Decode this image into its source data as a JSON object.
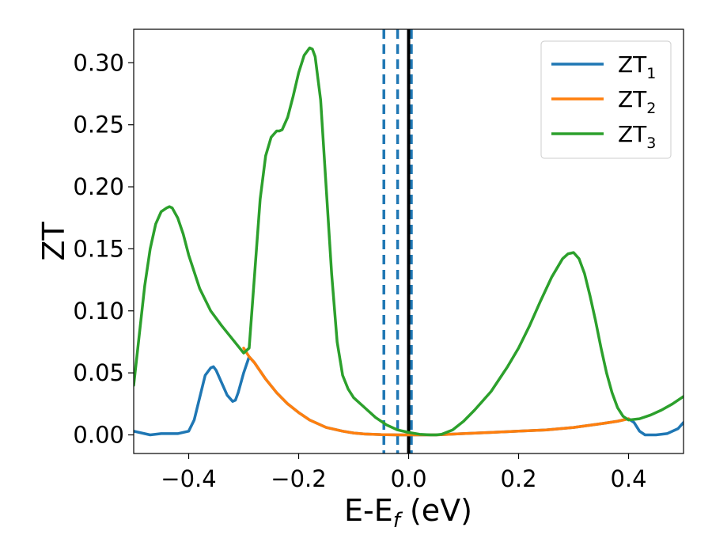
{
  "chart_data": {
    "type": "line",
    "xlabel": "E-E_f (eV)",
    "xlabel_main": "E-E",
    "xlabel_sub": "f",
    "xlabel_unit": " (eV)",
    "ylabel": "ZT",
    "xlim": [
      -0.5,
      0.5
    ],
    "ylim": [
      -0.015,
      0.327
    ],
    "xticks": [
      -0.4,
      -0.2,
      0.0,
      0.2,
      0.4
    ],
    "xtick_labels": [
      "−0.4",
      "−0.2",
      "0.0",
      "0.2",
      "0.4"
    ],
    "yticks": [
      0.0,
      0.05,
      0.1,
      0.15,
      0.2,
      0.25,
      0.3
    ],
    "ytick_labels": [
      "0.00",
      "0.05",
      "0.10",
      "0.15",
      "0.20",
      "0.25",
      "0.30"
    ],
    "grid": false,
    "legend_position": "top-right",
    "vlines": [
      {
        "x": -0.045,
        "style": "dashed",
        "color": "#1f77b4"
      },
      {
        "x": -0.02,
        "style": "dashed",
        "color": "#1f77b4"
      },
      {
        "x": 0.005,
        "style": "dashed",
        "color": "#1f77b4"
      },
      {
        "x": 0.0,
        "style": "solid",
        "color": "#000000"
      }
    ],
    "series": [
      {
        "name": "ZT_1",
        "label_main": "ZT",
        "label_sub": "1",
        "color": "#1f77b4",
        "x": [
          -0.5,
          -0.47,
          -0.45,
          -0.42,
          -0.4,
          -0.39,
          -0.38,
          -0.37,
          -0.36,
          -0.355,
          -0.35,
          -0.34,
          -0.33,
          -0.32,
          -0.315,
          -0.31,
          -0.3,
          -0.29,
          -0.28,
          -0.26,
          -0.24,
          -0.22,
          -0.2,
          -0.18,
          -0.15,
          -0.12,
          -0.1,
          -0.08,
          -0.05,
          -0.02,
          0.0,
          0.05,
          0.1,
          0.15,
          0.2,
          0.25,
          0.3,
          0.35,
          0.38,
          0.4,
          0.41,
          0.42,
          0.43,
          0.45,
          0.47,
          0.49,
          0.5
        ],
        "y": [
          0.003,
          0.0,
          0.001,
          0.001,
          0.003,
          0.012,
          0.03,
          0.048,
          0.054,
          0.055,
          0.052,
          0.042,
          0.032,
          0.027,
          0.028,
          0.034,
          0.05,
          0.063,
          0.058,
          0.045,
          0.034,
          0.025,
          0.018,
          0.012,
          0.006,
          0.003,
          0.0015,
          0.0007,
          0.0002,
          0.0,
          0.0,
          0.0,
          0.001,
          0.002,
          0.003,
          0.004,
          0.006,
          0.009,
          0.011,
          0.013,
          0.01,
          0.003,
          0.0,
          0.0,
          0.001,
          0.005,
          0.01
        ]
      },
      {
        "name": "ZT_2",
        "label_main": "ZT",
        "label_sub": "2",
        "color": "#ff7f0e",
        "x": [
          -0.3,
          -0.29,
          -0.28,
          -0.26,
          -0.24,
          -0.22,
          -0.2,
          -0.18,
          -0.15,
          -0.12,
          -0.1,
          -0.08,
          -0.05,
          -0.02,
          0.0,
          0.05,
          0.1,
          0.15,
          0.2,
          0.25,
          0.3,
          0.35,
          0.38,
          0.4
        ],
        "y": [
          0.07,
          0.063,
          0.058,
          0.045,
          0.034,
          0.025,
          0.018,
          0.012,
          0.006,
          0.003,
          0.0015,
          0.0007,
          0.0002,
          0.0,
          0.0,
          0.0,
          0.001,
          0.002,
          0.003,
          0.004,
          0.006,
          0.009,
          0.011,
          0.013
        ]
      },
      {
        "name": "ZT_3",
        "label_main": "ZT",
        "label_sub": "3",
        "color": "#2ca02c",
        "x": [
          -0.5,
          -0.49,
          -0.48,
          -0.47,
          -0.46,
          -0.45,
          -0.44,
          -0.435,
          -0.43,
          -0.42,
          -0.41,
          -0.4,
          -0.38,
          -0.36,
          -0.34,
          -0.32,
          -0.3,
          -0.29,
          -0.28,
          -0.27,
          -0.26,
          -0.25,
          -0.24,
          -0.235,
          -0.23,
          -0.22,
          -0.21,
          -0.2,
          -0.19,
          -0.18,
          -0.175,
          -0.17,
          -0.16,
          -0.15,
          -0.14,
          -0.13,
          -0.12,
          -0.11,
          -0.1,
          -0.08,
          -0.06,
          -0.04,
          -0.02,
          0.0,
          0.02,
          0.04,
          0.05,
          0.06,
          0.08,
          0.1,
          0.12,
          0.15,
          0.18,
          0.2,
          0.22,
          0.24,
          0.26,
          0.28,
          0.29,
          0.3,
          0.31,
          0.32,
          0.33,
          0.34,
          0.35,
          0.36,
          0.37,
          0.38,
          0.39,
          0.4,
          0.42,
          0.44,
          0.46,
          0.48,
          0.5
        ],
        "y": [
          0.04,
          0.08,
          0.12,
          0.15,
          0.17,
          0.18,
          0.183,
          0.184,
          0.183,
          0.175,
          0.162,
          0.145,
          0.118,
          0.1,
          0.088,
          0.077,
          0.066,
          0.07,
          0.13,
          0.19,
          0.225,
          0.24,
          0.245,
          0.245,
          0.246,
          0.256,
          0.273,
          0.292,
          0.306,
          0.312,
          0.311,
          0.305,
          0.27,
          0.2,
          0.13,
          0.075,
          0.048,
          0.037,
          0.03,
          0.022,
          0.014,
          0.008,
          0.004,
          0.002,
          0.0005,
          0.0,
          0.0,
          0.0005,
          0.004,
          0.011,
          0.02,
          0.035,
          0.055,
          0.07,
          0.088,
          0.108,
          0.127,
          0.142,
          0.146,
          0.147,
          0.142,
          0.13,
          0.112,
          0.092,
          0.07,
          0.05,
          0.034,
          0.022,
          0.015,
          0.012,
          0.013,
          0.016,
          0.02,
          0.025,
          0.031
        ]
      }
    ]
  }
}
